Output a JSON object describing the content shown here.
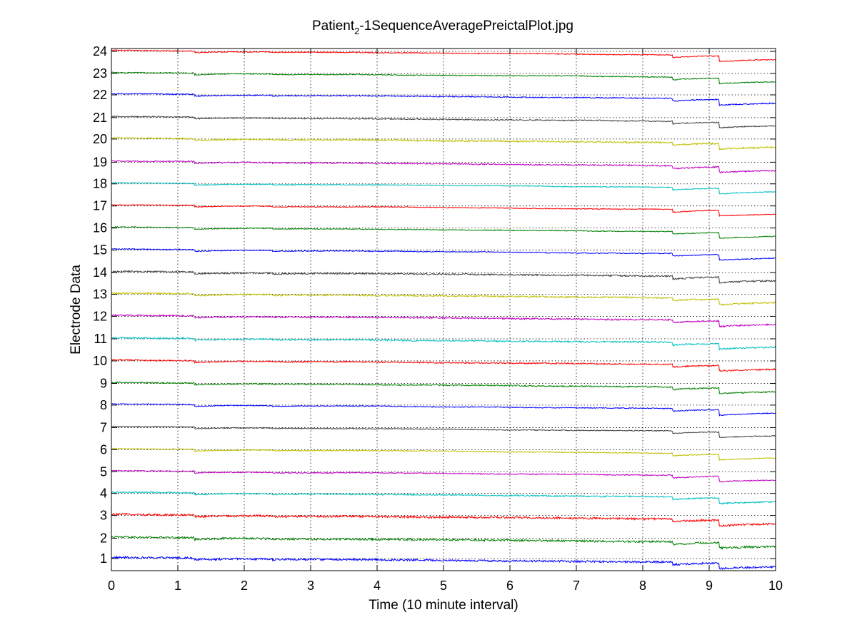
{
  "chart_data": {
    "type": "line",
    "title_main": "Patient",
    "title_sub": "2",
    "title_rest": "-1SequenceAveragePreictalPlot.jpg",
    "xlabel": "Time (10 minute interval)",
    "ylabel": "Electrode Data",
    "xlim": [
      0,
      10
    ],
    "xticks": [
      "0",
      "1",
      "2",
      "3",
      "4",
      "5",
      "6",
      "7",
      "8",
      "9",
      "10"
    ],
    "yticks": [
      "1",
      "2",
      "3",
      "4",
      "5",
      "6",
      "7",
      "8",
      "9",
      "10",
      "11",
      "12",
      "13",
      "14",
      "15",
      "16",
      "17",
      "18",
      "19",
      "20",
      "21",
      "22",
      "23",
      "24"
    ],
    "grid": true,
    "events": [
      {
        "x": 1.25,
        "shift": -0.08
      },
      {
        "x": 2.42,
        "shift": -0.03
      },
      {
        "x": 8.45,
        "shift": -0.12
      },
      {
        "x": 9.15,
        "shift": -0.25
      }
    ],
    "series": [
      {
        "baseline": 1.15,
        "noise": 0.045,
        "color": "#0000ff"
      },
      {
        "baseline": 2.07,
        "noise": 0.045,
        "color": "#008000"
      },
      {
        "baseline": 3.1,
        "noise": 0.045,
        "color": "#ff0000"
      },
      {
        "baseline": 4.1,
        "noise": 0.03,
        "color": "#00bfbf"
      },
      {
        "baseline": 5.08,
        "noise": 0.025,
        "color": "#bf00bf"
      },
      {
        "baseline": 6.08,
        "noise": 0.02,
        "color": "#bfbf00"
      },
      {
        "baseline": 7.08,
        "noise": 0.02,
        "color": "#404040"
      },
      {
        "baseline": 8.1,
        "noise": 0.02,
        "color": "#0000ff"
      },
      {
        "baseline": 9.08,
        "noise": 0.03,
        "color": "#008000"
      },
      {
        "baseline": 10.1,
        "noise": 0.03,
        "color": "#ff0000"
      },
      {
        "baseline": 11.1,
        "noise": 0.035,
        "color": "#00bfbf"
      },
      {
        "baseline": 12.12,
        "noise": 0.035,
        "color": "#bf00bf"
      },
      {
        "baseline": 13.12,
        "noise": 0.035,
        "color": "#bfbf00"
      },
      {
        "baseline": 14.1,
        "noise": 0.035,
        "color": "#404040"
      },
      {
        "baseline": 15.12,
        "noise": 0.02,
        "color": "#0000ff"
      },
      {
        "baseline": 16.12,
        "noise": 0.02,
        "color": "#008000"
      },
      {
        "baseline": 17.12,
        "noise": 0.02,
        "color": "#ff0000"
      },
      {
        "baseline": 18.12,
        "noise": 0.02,
        "color": "#00bfbf"
      },
      {
        "baseline": 19.1,
        "noise": 0.03,
        "color": "#bf00bf"
      },
      {
        "baseline": 20.15,
        "noise": 0.035,
        "color": "#bfbf00"
      },
      {
        "baseline": 21.12,
        "noise": 0.025,
        "color": "#404040"
      },
      {
        "baseline": 22.15,
        "noise": 0.025,
        "color": "#0000ff"
      },
      {
        "baseline": 23.12,
        "noise": 0.02,
        "color": "#008000"
      },
      {
        "baseline": 24.12,
        "noise": 0.02,
        "color": "#ff0000"
      }
    ]
  }
}
